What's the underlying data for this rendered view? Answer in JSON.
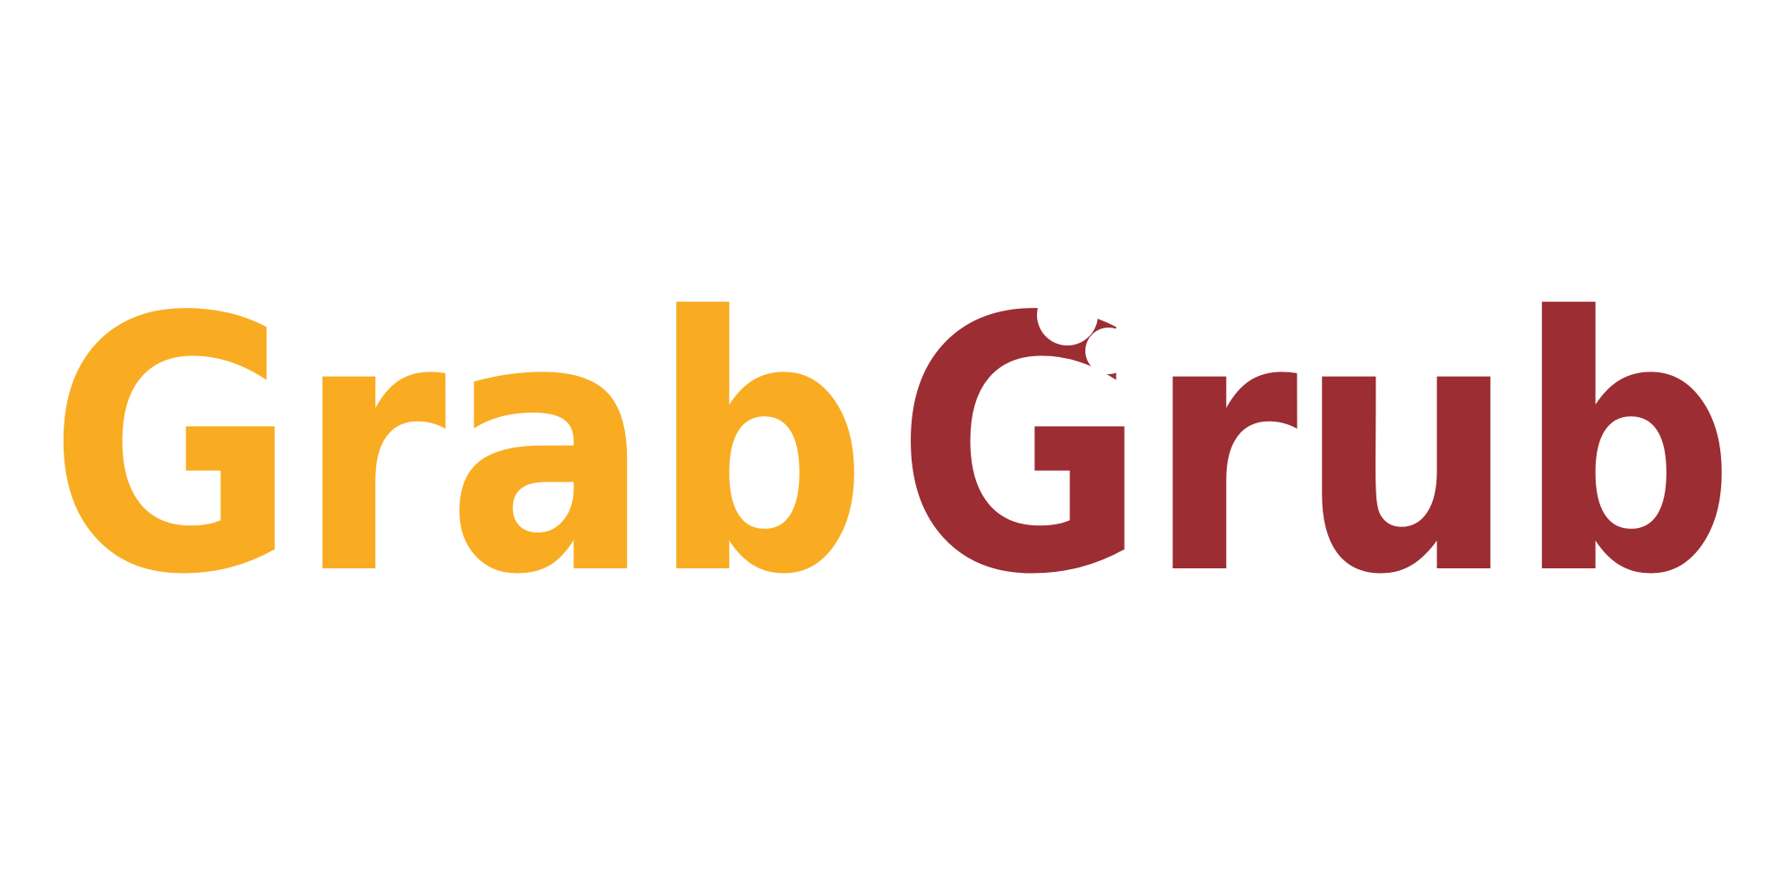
{
  "logo": {
    "word1": "Grab",
    "word2": "Grub",
    "colors": {
      "word1": "#F9AC22",
      "word2": "#9C2D33",
      "background": "#FFFFFF"
    },
    "bite_mark": true
  }
}
